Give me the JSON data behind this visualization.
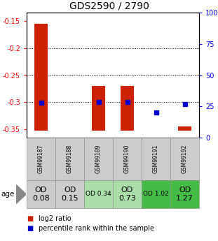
{
  "title": "GDS2590 / 2790",
  "samples": [
    "GSM99187",
    "GSM99188",
    "GSM99189",
    "GSM99190",
    "GSM99191",
    "GSM99192"
  ],
  "bar_bottoms": [
    -0.352,
    -0.352,
    -0.352,
    -0.352,
    -0.352,
    -0.352
  ],
  "bar_tops": [
    -0.155,
    -0.352,
    -0.27,
    -0.27,
    -0.352,
    -0.345
  ],
  "percentiles": [
    28,
    null,
    28.5,
    28.5,
    20,
    27
  ],
  "ylim_left": [
    -0.365,
    -0.135
  ],
  "ylim_right": [
    0,
    100
  ],
  "yticks_left": [
    -0.35,
    -0.3,
    -0.25,
    -0.2,
    -0.15
  ],
  "yticks_right": [
    0,
    25,
    50,
    75,
    100
  ],
  "ytick_labels_left": [
    "-0.35",
    "-0.3",
    "-0.25",
    "-0.2",
    "-0.15"
  ],
  "ytick_labels_right": [
    "0",
    "25",
    "50",
    "75",
    "100%"
  ],
  "hlines": [
    -0.2,
    -0.25,
    -0.3
  ],
  "age_labels": [
    "OD\n0.08",
    "OD\n0.15",
    "OD 0.34",
    "OD\n0.73",
    "OD 1.02",
    "OD\n1.27"
  ],
  "age_fontsizes": [
    8,
    8,
    6.5,
    8,
    6.5,
    8
  ],
  "age_bg_colors": [
    "#cccccc",
    "#cccccc",
    "#aaddaa",
    "#aaddaa",
    "#44bb44",
    "#44bb44"
  ],
  "sample_bg_color": "#cccccc",
  "bar_color": "#cc2200",
  "dot_color": "#0000cc",
  "title_fontsize": 10
}
